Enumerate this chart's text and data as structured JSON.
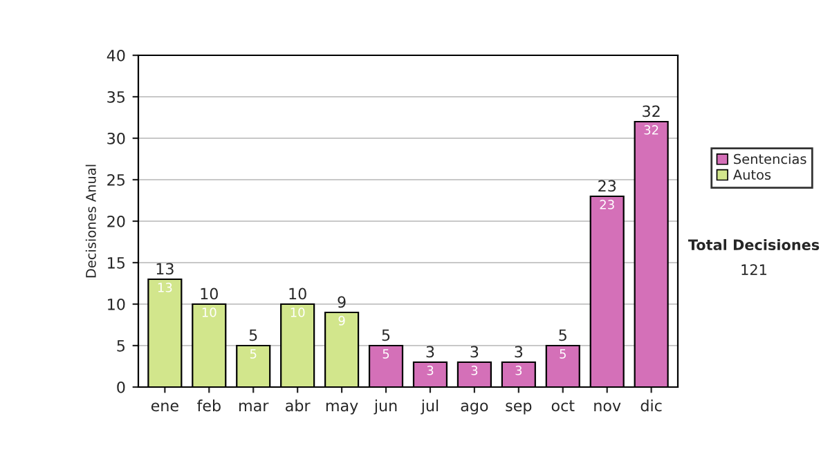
{
  "chart_data": {
    "type": "bar",
    "stacked": true,
    "ylabel": "Decisiones Anual",
    "categories": [
      "ene",
      "feb",
      "mar",
      "abr",
      "may",
      "jun",
      "jul",
      "ago",
      "sep",
      "oct",
      "nov",
      "dic"
    ],
    "series": [
      {
        "name": "Sentencias",
        "color": "#d470b8",
        "values": [
          null,
          null,
          null,
          null,
          null,
          5,
          3,
          3,
          3,
          5,
          23,
          32
        ]
      },
      {
        "name": "Autos",
        "color": "#d2e68c",
        "values": [
          13,
          10,
          5,
          10,
          9,
          null,
          null,
          null,
          null,
          null,
          null,
          null
        ]
      }
    ],
    "ylim": [
      0,
      40
    ],
    "yticks": [
      0,
      5,
      10,
      15,
      20,
      25,
      30,
      35,
      40
    ],
    "grid": "y",
    "legend": "right",
    "data_labels": true,
    "totals": [
      "13",
      "10",
      "5",
      "10",
      "9",
      "5",
      "3",
      "3",
      "3",
      "5",
      "23",
      "32"
    ],
    "annotations": [
      "Total Decisiones",
      "121"
    ]
  }
}
